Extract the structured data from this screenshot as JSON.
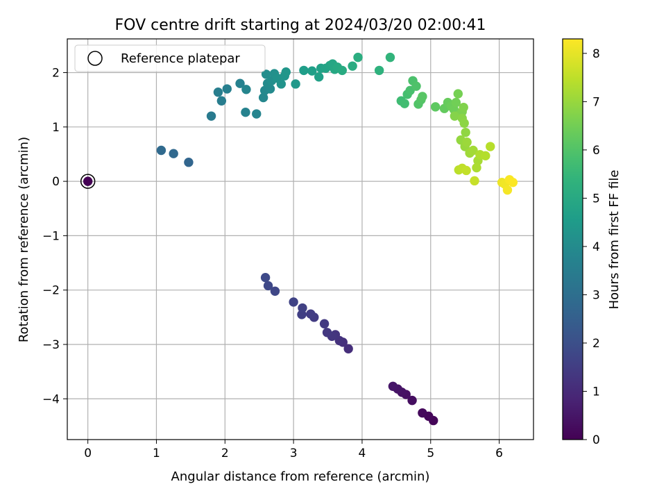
{
  "chart_data": {
    "type": "scatter",
    "title": "FOV centre drift starting at 2024/03/20 02:00:41",
    "xlabel": "Angular distance from reference (arcmin)",
    "ylabel": "Rotation from reference (arcmin)",
    "xlim": [
      -0.3,
      6.5
    ],
    "ylim": [
      -4.75,
      2.62
    ],
    "xticks": [
      0,
      1,
      2,
      3,
      4,
      5,
      6
    ],
    "yticks": [
      -4,
      -3,
      -2,
      -1,
      0,
      1,
      2
    ],
    "grid": true,
    "legend": {
      "placement": "top-left",
      "entries": [
        "Reference platepar"
      ]
    },
    "reference_point": {
      "x": 0,
      "y": 0
    },
    "colorbar": {
      "label": "Hours from first FF file",
      "range": [
        0,
        8.3
      ],
      "ticks": [
        0,
        1,
        2,
        3,
        4,
        5,
        6,
        7,
        8
      ],
      "colormap": "viridis"
    },
    "points": [
      [
        0.0,
        0.0,
        0.0
      ],
      [
        5.04,
        -4.4,
        0.1
      ],
      [
        4.97,
        -4.32,
        0.15
      ],
      [
        4.88,
        -4.26,
        0.2
      ],
      [
        4.73,
        -4.03,
        0.3
      ],
      [
        4.64,
        -3.92,
        0.35
      ],
      [
        4.58,
        -3.88,
        0.4
      ],
      [
        4.52,
        -3.82,
        0.45
      ],
      [
        4.45,
        -3.77,
        0.5
      ],
      [
        3.8,
        -3.08,
        1.1
      ],
      [
        3.72,
        -2.96,
        1.15
      ],
      [
        3.67,
        -2.93,
        1.2
      ],
      [
        3.61,
        -2.82,
        1.25
      ],
      [
        3.56,
        -2.85,
        1.3
      ],
      [
        3.49,
        -2.78,
        1.35
      ],
      [
        3.45,
        -2.62,
        1.4
      ],
      [
        3.3,
        -2.5,
        1.45
      ],
      [
        3.25,
        -2.44,
        1.5
      ],
      [
        3.12,
        -2.45,
        1.55
      ],
      [
        3.13,
        -2.33,
        1.6
      ],
      [
        3.0,
        -2.22,
        1.65
      ],
      [
        2.73,
        -2.02,
        1.75
      ],
      [
        2.63,
        -1.92,
        1.8
      ],
      [
        2.59,
        -1.77,
        1.85
      ],
      [
        1.47,
        0.35,
        2.7
      ],
      [
        1.25,
        0.51,
        2.8
      ],
      [
        1.07,
        0.57,
        2.85
      ],
      [
        1.8,
        1.2,
        3.4
      ],
      [
        1.95,
        1.48,
        3.5
      ],
      [
        1.9,
        1.64,
        3.55
      ],
      [
        2.03,
        1.7,
        3.6
      ],
      [
        2.22,
        1.8,
        3.65
      ],
      [
        2.3,
        1.27,
        3.7
      ],
      [
        2.46,
        1.24,
        3.75
      ],
      [
        2.31,
        1.69,
        3.8
      ],
      [
        2.56,
        1.54,
        3.85
      ],
      [
        2.58,
        1.67,
        3.9
      ],
      [
        2.66,
        1.7,
        3.95
      ],
      [
        2.62,
        1.8,
        4.0
      ],
      [
        2.6,
        1.97,
        4.05
      ],
      [
        2.68,
        1.85,
        4.1
      ],
      [
        2.72,
        1.98,
        4.15
      ],
      [
        2.76,
        1.9,
        4.2
      ],
      [
        2.82,
        1.79,
        4.25
      ],
      [
        2.87,
        1.94,
        4.3
      ],
      [
        2.89,
        2.01,
        4.35
      ],
      [
        3.03,
        1.79,
        4.4
      ],
      [
        3.15,
        2.04,
        4.6
      ],
      [
        3.27,
        2.03,
        4.65
      ],
      [
        3.37,
        1.92,
        4.7
      ],
      [
        3.4,
        2.08,
        4.75
      ],
      [
        3.47,
        2.08,
        4.8
      ],
      [
        3.53,
        2.13,
        4.85
      ],
      [
        3.57,
        2.16,
        4.9
      ],
      [
        3.6,
        2.06,
        4.95
      ],
      [
        3.64,
        2.1,
        5.0
      ],
      [
        3.71,
        2.04,
        5.05
      ],
      [
        3.86,
        2.12,
        5.1
      ],
      [
        3.94,
        2.28,
        5.15
      ],
      [
        4.25,
        2.04,
        5.3
      ],
      [
        4.41,
        2.28,
        5.4
      ],
      [
        4.57,
        1.48,
        5.7
      ],
      [
        4.62,
        1.43,
        5.75
      ],
      [
        4.66,
        1.6,
        5.8
      ],
      [
        4.7,
        1.67,
        5.85
      ],
      [
        4.74,
        1.85,
        5.9
      ],
      [
        4.79,
        1.75,
        5.95
      ],
      [
        4.82,
        1.42,
        6.0
      ],
      [
        4.86,
        1.5,
        6.05
      ],
      [
        4.88,
        1.56,
        6.1
      ],
      [
        5.07,
        1.37,
        6.2
      ],
      [
        5.2,
        1.34,
        6.3
      ],
      [
        5.25,
        1.45,
        6.35
      ],
      [
        5.3,
        1.38,
        6.4
      ],
      [
        5.34,
        1.32,
        6.45
      ],
      [
        5.37,
        1.45,
        6.5
      ],
      [
        5.4,
        1.61,
        6.55
      ],
      [
        5.43,
        1.24,
        6.6
      ],
      [
        5.46,
        1.28,
        6.65
      ],
      [
        5.48,
        1.36,
        6.7
      ],
      [
        5.35,
        1.2,
        6.75
      ],
      [
        5.46,
        1.16,
        6.8
      ],
      [
        5.49,
        1.07,
        6.85
      ],
      [
        5.51,
        0.9,
        6.9
      ],
      [
        5.44,
        0.76,
        6.95
      ],
      [
        5.5,
        0.64,
        7.0
      ],
      [
        5.53,
        0.72,
        7.05
      ],
      [
        5.57,
        0.52,
        7.1
      ],
      [
        5.62,
        0.57,
        7.15
      ],
      [
        5.69,
        0.38,
        7.2
      ],
      [
        5.67,
        0.25,
        7.25
      ],
      [
        5.72,
        0.49,
        7.3
      ],
      [
        5.8,
        0.47,
        7.35
      ],
      [
        5.87,
        0.64,
        7.4
      ],
      [
        5.41,
        0.21,
        7.45
      ],
      [
        5.46,
        0.24,
        7.5
      ],
      [
        5.52,
        0.2,
        7.55
      ],
      [
        5.64,
        0.01,
        7.6
      ],
      [
        6.04,
        -0.02,
        8.1
      ],
      [
        6.08,
        -0.05,
        8.15
      ],
      [
        6.12,
        -0.16,
        8.2
      ],
      [
        6.15,
        0.03,
        8.25
      ],
      [
        6.2,
        -0.02,
        8.28
      ]
    ]
  }
}
